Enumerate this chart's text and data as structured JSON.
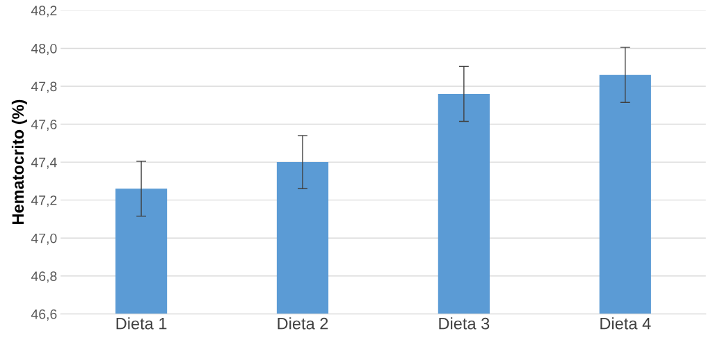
{
  "chart_data": {
    "type": "bar",
    "ylabel": "Hematocrito (%)",
    "categories": [
      "Dieta 1",
      "Dieta 2",
      "Dieta 3",
      "Dieta 4"
    ],
    "values": [
      47.26,
      47.4,
      47.76,
      47.86
    ],
    "errors": [
      0.145,
      0.14,
      0.145,
      0.145
    ],
    "color": "#5b9bd5",
    "ylim": [
      46.6,
      48.2
    ],
    "yticks": [
      {
        "value": 46.6,
        "label": "46,6"
      },
      {
        "value": 46.8,
        "label": "46,8"
      },
      {
        "value": 47.0,
        "label": "47,0"
      },
      {
        "value": 47.2,
        "label": "47,2"
      },
      {
        "value": 47.4,
        "label": "47,4"
      },
      {
        "value": 47.6,
        "label": "47,6"
      },
      {
        "value": 47.8,
        "label": "47,8"
      },
      {
        "value": 48.0,
        "label": "48,0"
      },
      {
        "value": 48.2,
        "label": "48,2"
      }
    ],
    "grid": "y"
  }
}
